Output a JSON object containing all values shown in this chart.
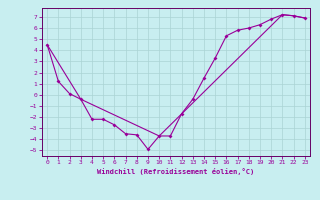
{
  "xlabel": "Windchill (Refroidissement éolien,°C)",
  "background_color": "#c8eef0",
  "grid_color": "#aad4d4",
  "line_color": "#990099",
  "spine_color": "#660066",
  "xlim": [
    -0.5,
    23.5
  ],
  "ylim": [
    -5.5,
    7.8
  ],
  "xticks": [
    0,
    1,
    2,
    3,
    4,
    5,
    6,
    7,
    8,
    9,
    10,
    11,
    12,
    13,
    14,
    15,
    16,
    17,
    18,
    19,
    20,
    21,
    22,
    23
  ],
  "yticks": [
    -5,
    -4,
    -3,
    -2,
    -1,
    0,
    1,
    2,
    3,
    4,
    5,
    6,
    7
  ],
  "line1_x": [
    0,
    1,
    2,
    3,
    4,
    5,
    6,
    7,
    8,
    9,
    10,
    11,
    12,
    13,
    14,
    15,
    16,
    17,
    18,
    19,
    20,
    21,
    22,
    23
  ],
  "line1_y": [
    4.5,
    1.2,
    0.1,
    -0.4,
    -2.2,
    -2.2,
    -2.7,
    -3.5,
    -3.6,
    -4.9,
    -3.7,
    -3.7,
    -1.7,
    -0.4,
    1.5,
    3.3,
    5.3,
    5.8,
    6.0,
    6.3,
    6.8,
    7.2,
    7.1,
    6.9
  ],
  "line2_x": [
    0,
    3,
    10,
    21,
    22,
    23
  ],
  "line2_y": [
    4.5,
    -0.4,
    -3.7,
    7.2,
    7.1,
    6.9
  ]
}
